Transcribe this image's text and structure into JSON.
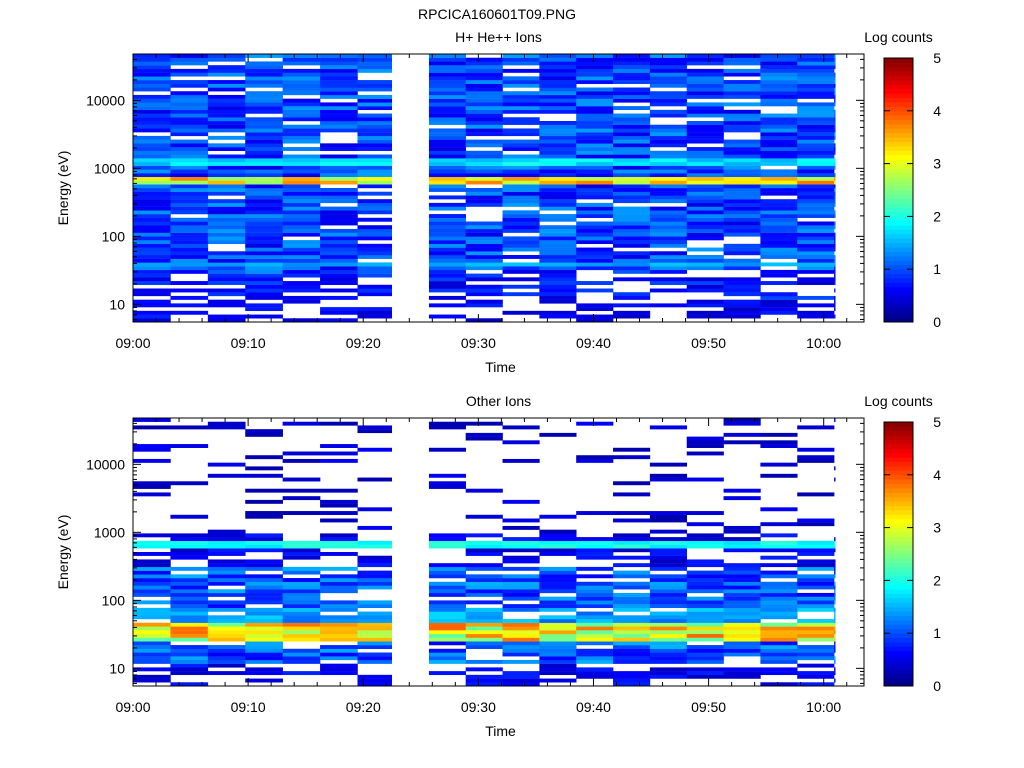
{
  "figure_title": "RPCICA160601T09.PNG",
  "chart_data": [
    {
      "type": "heatmap",
      "title": "H+ He++ Ions",
      "xlabel": "Time",
      "ylabel": "Energy (eV)",
      "colorbar_label": "Log counts",
      "colorbar_ticks": [
        "0",
        "1",
        "2",
        "3",
        "4",
        "5"
      ],
      "colorbar_range": [
        0,
        5
      ],
      "yscale": "log",
      "ylim": [
        5.5,
        48000
      ],
      "y_ticks": [
        {
          "value": 10,
          "label": "10"
        },
        {
          "value": 100,
          "label": "100"
        },
        {
          "value": 1000,
          "label": "1000"
        },
        {
          "value": 10000,
          "label": "10000"
        }
      ],
      "x_ticks": [
        "09:00",
        "09:10",
        "09:20",
        "09:30",
        "09:40",
        "09:50",
        "10:00"
      ],
      "x_tick_minutes": [
        0,
        10,
        20,
        30,
        40,
        50,
        60
      ],
      "xlim_minutes": [
        0,
        63.5
      ],
      "data_gap_minutes": [
        22.5,
        25.7
      ],
      "strongest_band_eV": [
        550,
        750
      ],
      "secondary_band_eV": [
        1150,
        1450
      ],
      "low_band_eV": [
        36,
        42
      ]
    },
    {
      "type": "heatmap",
      "title": "Other Ions",
      "xlabel": "Time",
      "ylabel": "Energy (eV)",
      "colorbar_label": "Log counts",
      "colorbar_ticks": [
        "0",
        "1",
        "2",
        "3",
        "4",
        "5"
      ],
      "colorbar_range": [
        0,
        5
      ],
      "yscale": "log",
      "ylim": [
        5.5,
        48000
      ],
      "y_ticks": [
        {
          "value": 10,
          "label": "10"
        },
        {
          "value": 100,
          "label": "100"
        },
        {
          "value": 1000,
          "label": "1000"
        },
        {
          "value": 10000,
          "label": "10000"
        }
      ],
      "x_ticks": [
        "09:00",
        "09:10",
        "09:20",
        "09:30",
        "09:40",
        "09:50",
        "10:00"
      ],
      "x_tick_minutes": [
        0,
        10,
        20,
        30,
        40,
        50,
        60
      ],
      "xlim_minutes": [
        0,
        63.5
      ],
      "data_gap_minutes": [
        22.5,
        25.7
      ],
      "strongest_band_eV": [
        26,
        45
      ],
      "secondary_band_eV": [
        560,
        720
      ]
    }
  ]
}
